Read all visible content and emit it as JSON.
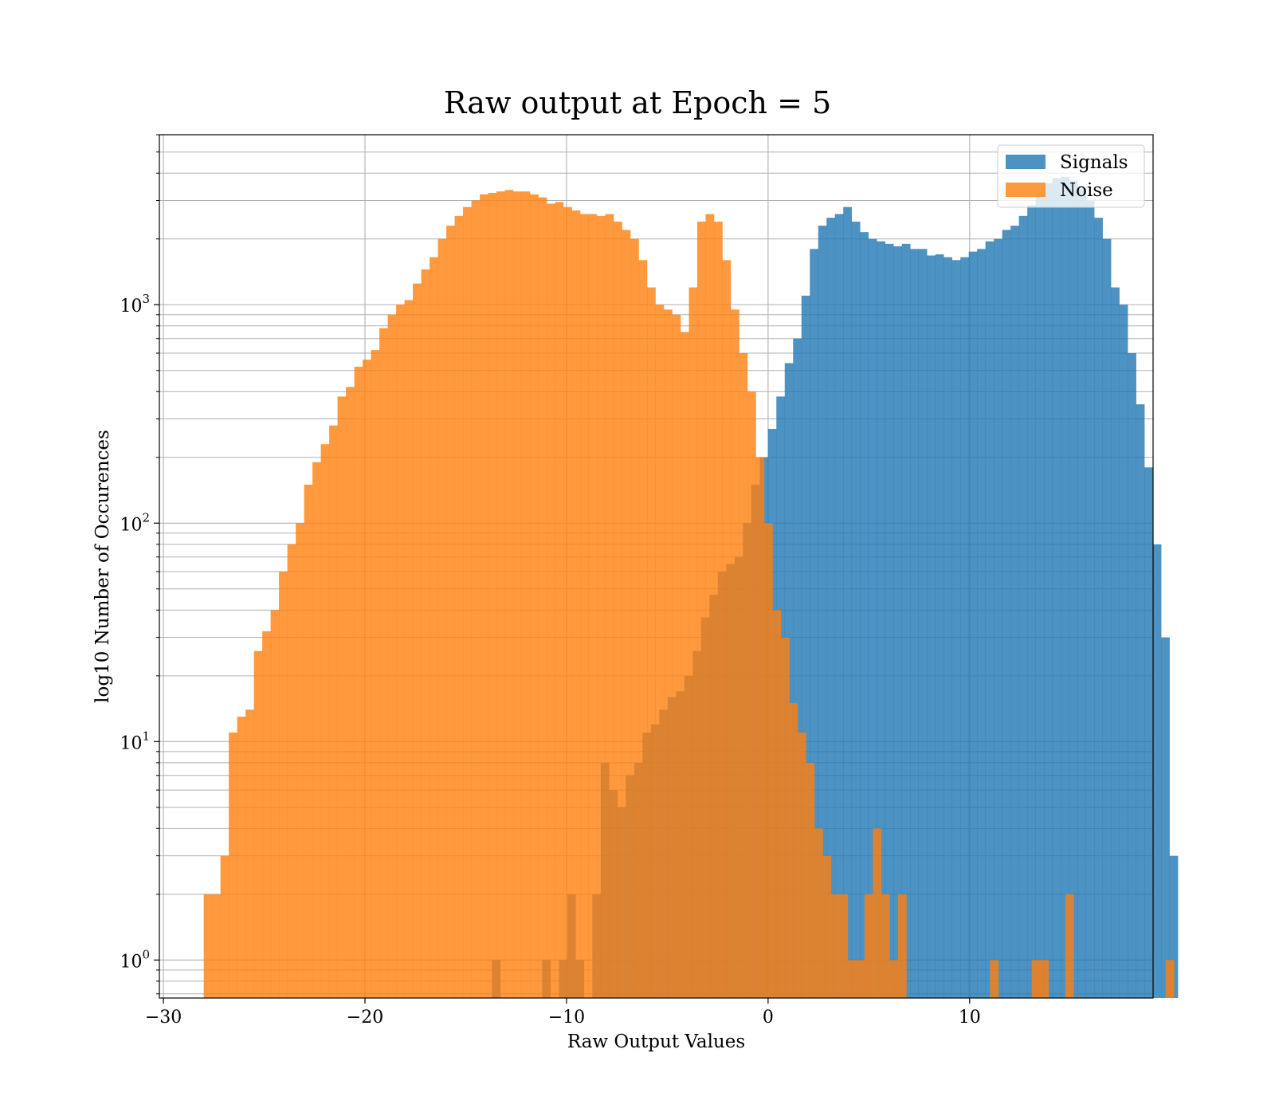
{
  "chart_data": {
    "type": "bar",
    "title": "Raw output at Epoch = 5",
    "xlabel": "Raw Output Values",
    "ylabel": "log10 Number of Occurences",
    "xlim": [
      -30.2,
      19.1
    ],
    "ylim": [
      0.67,
      6000
    ],
    "yscale": "log",
    "grid": true,
    "legend_position": "top-right",
    "x_ticks": [
      {
        "value": -30,
        "label": "−30"
      },
      {
        "value": -20,
        "label": "−20"
      },
      {
        "value": -10,
        "label": "−10"
      },
      {
        "value": 0,
        "label": "0"
      },
      {
        "value": 10,
        "label": "10"
      }
    ],
    "y_ticks": [
      {
        "value": 1,
        "base": "10",
        "exp": "0"
      },
      {
        "value": 10,
        "base": "10",
        "exp": "1"
      },
      {
        "value": 100,
        "base": "10",
        "exp": "2"
      },
      {
        "value": 1000,
        "base": "10",
        "exp": "3"
      }
    ],
    "series": [
      {
        "name": "Signals",
        "color": "#1f77b4",
        "opacity": 0.8,
        "bin_start": -13.7,
        "bin_width": 0.415,
        "values": [
          1,
          0,
          0,
          0,
          0,
          0,
          1,
          0,
          1,
          2,
          1,
          0,
          2,
          8,
          6,
          5,
          7,
          8,
          11,
          12,
          14,
          16,
          17,
          20,
          26,
          37,
          47,
          60,
          65,
          70,
          100,
          150,
          200,
          270,
          380,
          540,
          700,
          1100,
          1800,
          2300,
          2500,
          2600,
          2800,
          2400,
          2150,
          2000,
          1950,
          1900,
          1850,
          1900,
          1800,
          1800,
          1680,
          1700,
          1650,
          1600,
          1650,
          1750,
          1800,
          1950,
          2000,
          2200,
          2300,
          2550,
          2850,
          3200,
          3600,
          3800,
          3850,
          3700,
          3400,
          3000,
          2500,
          2000,
          1200,
          1000,
          600,
          350,
          180,
          80,
          30,
          3
        ]
      },
      {
        "name": "Noise",
        "color": "#ff7f0e",
        "opacity": 0.8,
        "bin_start": -28.0,
        "bin_width": 0.415,
        "values": [
          2,
          2,
          3,
          11,
          13,
          14,
          26,
          32,
          40,
          60,
          80,
          100,
          150,
          190,
          230,
          280,
          380,
          420,
          520,
          560,
          620,
          780,
          900,
          1000,
          1050,
          1250,
          1450,
          1650,
          2000,
          2300,
          2550,
          2800,
          3000,
          3200,
          3250,
          3300,
          3350,
          3300,
          3300,
          3200,
          3100,
          2900,
          2950,
          2800,
          2700,
          2600,
          2600,
          2550,
          2600,
          2400,
          2200,
          2000,
          1600,
          1200,
          1000,
          950,
          900,
          750,
          1200,
          2400,
          2600,
          2400,
          1600,
          950,
          600,
          400,
          200,
          100,
          40,
          30,
          15,
          11,
          8,
          4,
          3,
          2,
          2,
          1,
          1,
          2,
          4,
          2,
          1,
          2,
          0,
          0,
          0,
          0,
          0,
          0,
          0,
          0,
          0,
          0,
          1,
          0,
          0,
          0,
          0,
          1,
          1,
          0,
          0,
          2,
          0,
          0,
          0,
          0,
          0,
          0,
          0,
          0,
          0,
          0,
          0,
          1
        ]
      }
    ]
  }
}
